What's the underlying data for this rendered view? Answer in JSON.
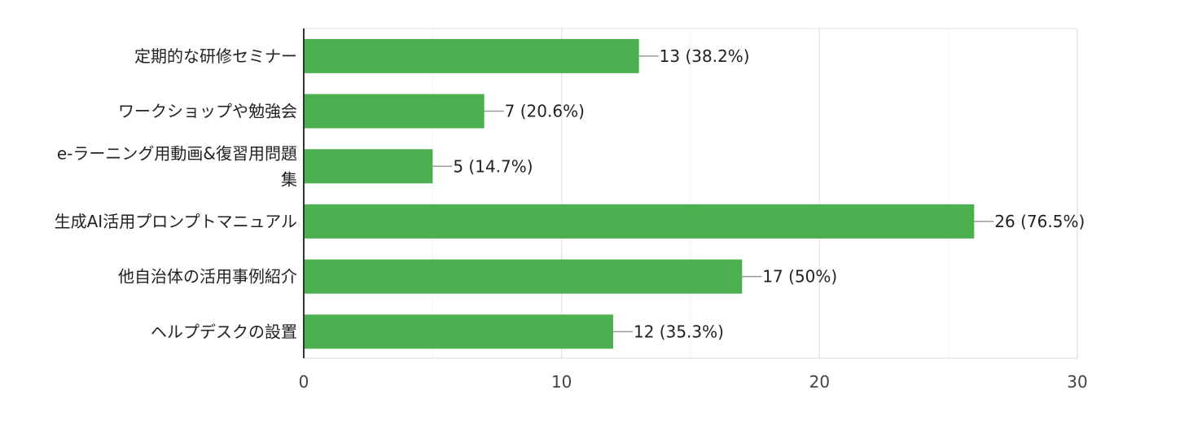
{
  "chart_data": {
    "type": "bar",
    "orientation": "horizontal",
    "categories": [
      [
        "定期的な研修セミナー"
      ],
      [
        "ワークショップや勉強会"
      ],
      [
        "e-ラーニング用動画&復習用問題",
        "集"
      ],
      [
        "生成AI活用プロンプトマニュアル"
      ],
      [
        "他自治体の活用事例紹介"
      ],
      [
        "ヘルプデスクの設置"
      ]
    ],
    "values": [
      13,
      7,
      5,
      26,
      17,
      12
    ],
    "value_labels": [
      "13 (38.2%)",
      "7 (20.6%)",
      "5 (14.7%)",
      "26 (76.5%)",
      "17 (50%)",
      "12 (35.3%)"
    ],
    "xlim": [
      0,
      30
    ],
    "x_ticks": [
      0,
      10,
      20,
      30
    ],
    "grid": true,
    "title": "",
    "xlabel": "",
    "ylabel": "",
    "colors": {
      "bar": "#4CAF50",
      "grid_major": "#e6e6e6",
      "grid_minor": "#f2f2f2",
      "axis": "#333333",
      "leader": "#999999"
    }
  }
}
